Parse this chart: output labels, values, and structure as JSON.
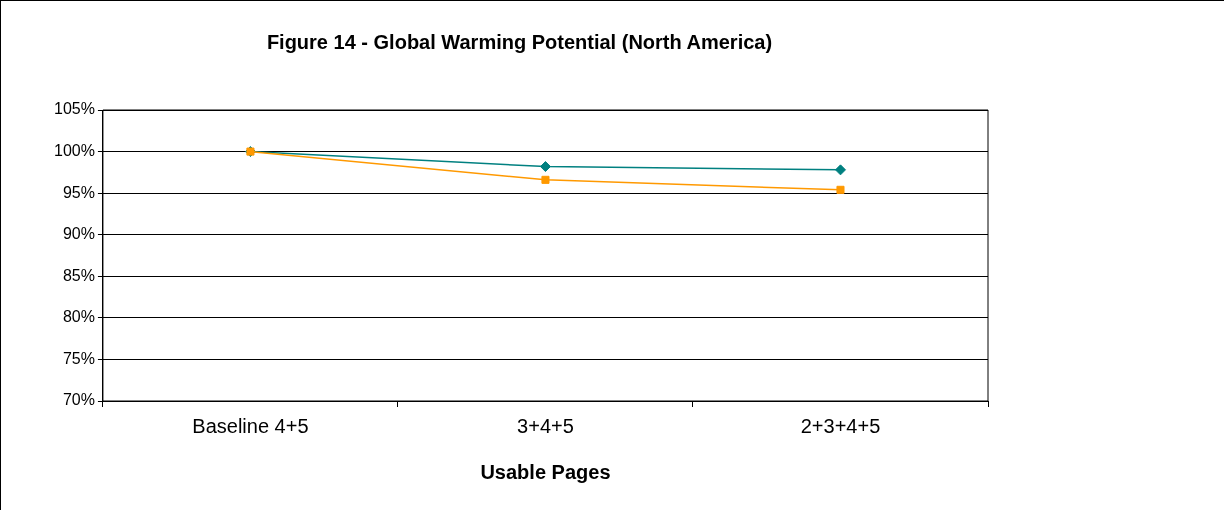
{
  "chart_data": {
    "type": "line",
    "title": "Figure 14 - Global Warming Potential (North America)",
    "xlabel": "Usable Pages",
    "categories": [
      "Baseline 4+5",
      "3+4+5",
      "2+3+4+5"
    ],
    "series": [
      {
        "color": "#008080",
        "marker": "diamond",
        "values": [
          100,
          98.2,
          97.8
        ]
      },
      {
        "color": "#ff9900",
        "marker": "square",
        "values": [
          100,
          96.6,
          95.4
        ]
      }
    ],
    "ylim": [
      70,
      105
    ],
    "yticks": [
      {
        "value": 70,
        "label": "70%"
      },
      {
        "value": 75,
        "label": "75%"
      },
      {
        "value": 80,
        "label": "80%"
      },
      {
        "value": 85,
        "label": "85%"
      },
      {
        "value": 90,
        "label": "90%"
      },
      {
        "value": 95,
        "label": "95%"
      },
      {
        "value": 100,
        "label": "100%"
      },
      {
        "value": 105,
        "label": "105%"
      }
    ],
    "grid": "y"
  }
}
